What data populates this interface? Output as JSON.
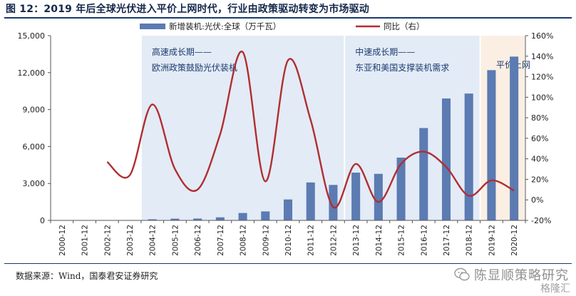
{
  "figure": {
    "title": "图 12：2019 年后全球光伏进入平价上网时代，行业由政策驱动转变为市场驱动",
    "source": "数据来源：Wind，国泰君安证券研究",
    "watermark": "陈显顺策略研究",
    "watermark_sub": "格隆汇"
  },
  "chart_data": {
    "type": "bar",
    "categories": [
      "2000-12",
      "2001-12",
      "2002-12",
      "2003-12",
      "2004-12",
      "2005-12",
      "2006-12",
      "2007-12",
      "2008-12",
      "2009-12",
      "2010-12",
      "2011-12",
      "2012-12",
      "2013-12",
      "2014-12",
      "2015-12",
      "2016-12",
      "2017-12",
      "2018-12",
      "2019-12",
      "2020-12"
    ],
    "series": [
      {
        "name": "新增装机:光伏:全球（万千瓦）",
        "type": "bar",
        "axis": "left",
        "color": "#5b7bb2",
        "values": [
          0,
          0,
          20,
          30,
          90,
          140,
          150,
          250,
          600,
          730,
          1700,
          3080,
          2880,
          3880,
          3780,
          5100,
          7500,
          9900,
          10300,
          12200,
          13300
        ]
      },
      {
        "name": "同比（右）",
        "type": "line",
        "axis": "right",
        "color": "#b02e30",
        "values": [
          null,
          null,
          37,
          24,
          93,
          30,
          10,
          64,
          144,
          18,
          136,
          78,
          -7,
          35,
          -2,
          35,
          47,
          32,
          4,
          19,
          9
        ]
      }
    ],
    "y_left": {
      "min": 0,
      "max": 15000,
      "ticks": [
        0,
        3000,
        6000,
        9000,
        12000,
        15000
      ],
      "tick_labels": [
        "0",
        "3,000",
        "6,000",
        "9,000",
        "12,000",
        "15,000"
      ]
    },
    "y_right": {
      "min": -20,
      "max": 160,
      "ticks": [
        -20,
        0,
        20,
        40,
        60,
        80,
        100,
        120,
        140,
        160
      ],
      "tick_labels": [
        "-20%",
        "0%",
        "20%",
        "40%",
        "60%",
        "80%",
        "100%",
        "120%",
        "140%",
        "160%"
      ]
    },
    "legend_position": "top",
    "grid": false,
    "shaded_periods": [
      {
        "from": "2004-12",
        "to": "2012-12",
        "color": "#e3ebf6",
        "label_lines": [
          "高速成长期——",
          "欧洲政策鼓励光伏装机"
        ]
      },
      {
        "from": "2013-12",
        "to": "2018-12",
        "color": "#e3ebf6",
        "label_lines": [
          "中速成长期——",
          "东亚和美国支撑装机需求"
        ]
      },
      {
        "from": "2019-12",
        "to": "2020-12",
        "color": "#fbefe4",
        "label_lines": [
          "平价上网"
        ]
      }
    ]
  }
}
